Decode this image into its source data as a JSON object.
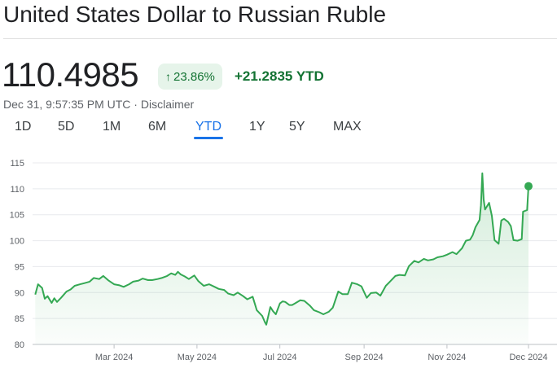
{
  "header": {
    "title": "United States Dollar to Russian Ruble",
    "price": "110.4985",
    "change_percent": "23.86%",
    "change_arrow": "↑",
    "change_value": "+21.2835",
    "change_period": "YTD",
    "timestamp": "Dec 31, 9:57:35 PM UTC",
    "separator": "·",
    "disclaimer": "Disclaimer"
  },
  "ranges": {
    "items": [
      "1D",
      "5D",
      "1M",
      "6M",
      "YTD",
      "1Y",
      "5Y",
      "MAX"
    ],
    "selected": "YTD"
  },
  "colors": {
    "line": "#34a853",
    "positive_text": "#137333",
    "accent": "#1a73e8",
    "grid": "#e8eaed"
  },
  "chart_data": {
    "type": "area",
    "series": [
      {
        "points": [
          [
            "2024-01-03",
            89.6
          ],
          [
            "2024-01-05",
            91.6
          ],
          [
            "2024-01-08",
            90.9
          ],
          [
            "2024-01-10",
            88.8
          ],
          [
            "2024-01-12",
            89.3
          ],
          [
            "2024-01-15",
            88.0
          ],
          [
            "2024-01-17",
            88.9
          ],
          [
            "2024-01-19",
            88.2
          ],
          [
            "2024-01-22",
            89.0
          ],
          [
            "2024-01-24",
            89.6
          ],
          [
            "2024-01-26",
            90.2
          ],
          [
            "2024-01-29",
            90.6
          ],
          [
            "2024-02-01",
            91.3
          ],
          [
            "2024-02-05",
            91.6
          ],
          [
            "2024-02-08",
            91.8
          ],
          [
            "2024-02-12",
            92.1
          ],
          [
            "2024-02-15",
            92.8
          ],
          [
            "2024-02-19",
            92.6
          ],
          [
            "2024-02-22",
            93.2
          ],
          [
            "2024-02-26",
            92.3
          ],
          [
            "2024-03-01",
            91.6
          ],
          [
            "2024-03-05",
            91.4
          ],
          [
            "2024-03-08",
            91.1
          ],
          [
            "2024-03-12",
            91.6
          ],
          [
            "2024-03-15",
            92.1
          ],
          [
            "2024-03-19",
            92.3
          ],
          [
            "2024-03-22",
            92.7
          ],
          [
            "2024-03-26",
            92.4
          ],
          [
            "2024-03-29",
            92.4
          ],
          [
            "2024-04-02",
            92.6
          ],
          [
            "2024-04-05",
            92.8
          ],
          [
            "2024-04-09",
            93.2
          ],
          [
            "2024-04-12",
            93.7
          ],
          [
            "2024-04-15",
            93.4
          ],
          [
            "2024-04-17",
            94.0
          ],
          [
            "2024-04-19",
            93.5
          ],
          [
            "2024-04-22",
            93.1
          ],
          [
            "2024-04-25",
            92.6
          ],
          [
            "2024-04-29",
            93.3
          ],
          [
            "2024-05-02",
            92.2
          ],
          [
            "2024-05-06",
            91.3
          ],
          [
            "2024-05-10",
            91.6
          ],
          [
            "2024-05-14",
            91.1
          ],
          [
            "2024-05-17",
            90.7
          ],
          [
            "2024-05-21",
            90.5
          ],
          [
            "2024-05-24",
            89.8
          ],
          [
            "2024-05-28",
            89.5
          ],
          [
            "2024-05-31",
            90.0
          ],
          [
            "2024-06-04",
            89.3
          ],
          [
            "2024-06-07",
            88.7
          ],
          [
            "2024-06-11",
            89.2
          ],
          [
            "2024-06-13",
            87.5
          ],
          [
            "2024-06-14",
            86.6
          ],
          [
            "2024-06-18",
            85.5
          ],
          [
            "2024-06-20",
            84.3
          ],
          [
            "2024-06-21",
            83.8
          ],
          [
            "2024-06-24",
            87.2
          ],
          [
            "2024-06-26",
            86.4
          ],
          [
            "2024-06-28",
            85.8
          ],
          [
            "2024-07-01",
            87.9
          ],
          [
            "2024-07-03",
            88.3
          ],
          [
            "2024-07-05",
            88.2
          ],
          [
            "2024-07-08",
            87.6
          ],
          [
            "2024-07-10",
            87.6
          ],
          [
            "2024-07-12",
            87.9
          ],
          [
            "2024-07-16",
            88.5
          ],
          [
            "2024-07-19",
            88.4
          ],
          [
            "2024-07-23",
            87.5
          ],
          [
            "2024-07-26",
            86.6
          ],
          [
            "2024-07-30",
            86.2
          ],
          [
            "2024-08-02",
            85.8
          ],
          [
            "2024-08-06",
            86.3
          ],
          [
            "2024-08-09",
            87.1
          ],
          [
            "2024-08-13",
            90.2
          ],
          [
            "2024-08-16",
            89.7
          ],
          [
            "2024-08-20",
            89.7
          ],
          [
            "2024-08-23",
            91.9
          ],
          [
            "2024-08-27",
            91.6
          ],
          [
            "2024-08-30",
            91.2
          ],
          [
            "2024-09-03",
            89.0
          ],
          [
            "2024-09-06",
            89.9
          ],
          [
            "2024-09-10",
            90.0
          ],
          [
            "2024-09-13",
            89.4
          ],
          [
            "2024-09-17",
            91.3
          ],
          [
            "2024-09-20",
            92.1
          ],
          [
            "2024-09-24",
            93.2
          ],
          [
            "2024-09-27",
            93.4
          ],
          [
            "2024-10-01",
            93.3
          ],
          [
            "2024-10-04",
            95.1
          ],
          [
            "2024-10-08",
            96.1
          ],
          [
            "2024-10-11",
            95.8
          ],
          [
            "2024-10-15",
            96.5
          ],
          [
            "2024-10-18",
            96.2
          ],
          [
            "2024-10-22",
            96.4
          ],
          [
            "2024-10-25",
            96.8
          ],
          [
            "2024-10-29",
            97.0
          ],
          [
            "2024-11-01",
            97.3
          ],
          [
            "2024-11-05",
            97.8
          ],
          [
            "2024-11-08",
            97.4
          ],
          [
            "2024-11-12",
            98.5
          ],
          [
            "2024-11-15",
            100.0
          ],
          [
            "2024-11-18",
            100.2
          ],
          [
            "2024-11-20",
            101.1
          ],
          [
            "2024-11-22",
            102.6
          ],
          [
            "2024-11-25",
            104.0
          ],
          [
            "2024-11-26",
            106.8
          ],
          [
            "2024-11-27",
            113.0
          ],
          [
            "2024-11-28",
            108.0
          ],
          [
            "2024-11-29",
            106.0
          ],
          [
            "2024-12-02",
            107.3
          ],
          [
            "2024-12-04",
            104.8
          ],
          [
            "2024-12-06",
            100.1
          ],
          [
            "2024-12-09",
            99.4
          ],
          [
            "2024-12-11",
            103.9
          ],
          [
            "2024-12-13",
            104.2
          ],
          [
            "2024-12-16",
            103.6
          ],
          [
            "2024-12-18",
            102.8
          ],
          [
            "2024-12-20",
            100.1
          ],
          [
            "2024-12-23",
            100.0
          ],
          [
            "2024-12-26",
            100.3
          ],
          [
            "2024-12-27",
            105.6
          ],
          [
            "2024-12-30",
            105.9
          ],
          [
            "2024-12-31",
            110.4985
          ]
        ]
      }
    ],
    "x_range": [
      "2024-01-01",
      "2024-12-31"
    ],
    "ylim": [
      80,
      115
    ],
    "y_ticks": [
      80,
      85,
      90,
      95,
      100,
      105,
      110,
      115
    ],
    "x_ticks": [
      {
        "date": "2024-03-01",
        "label": "Mar 2024"
      },
      {
        "date": "2024-05-01",
        "label": "May 2024"
      },
      {
        "date": "2024-07-01",
        "label": "Jul 2024"
      },
      {
        "date": "2024-09-01",
        "label": "Sep 2024"
      },
      {
        "date": "2024-11-01",
        "label": "Nov 2024"
      },
      {
        "date": "2024-12-31",
        "label": "Dec 2024"
      }
    ],
    "grid": true,
    "area_fill": true,
    "end_marker": true
  }
}
